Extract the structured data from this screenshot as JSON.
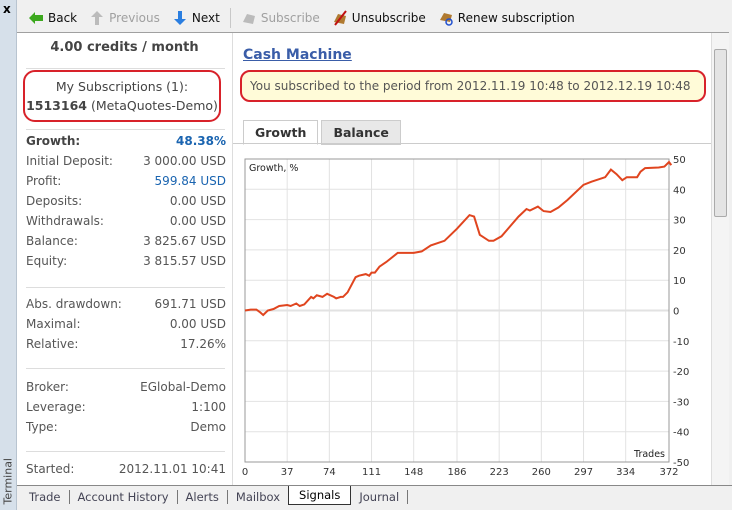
{
  "window": {
    "close_label": "x",
    "panel_label": "Terminal"
  },
  "toolbar": {
    "back": "Back",
    "previous": "Previous",
    "next": "Next",
    "subscribe": "Subscribe",
    "unsubscribe": "Unsubscribe",
    "renew": "Renew subscription"
  },
  "left": {
    "price": "4.00 credits / month",
    "subs_title": "My Subscriptions (1):",
    "subs_account": "1513164",
    "subs_server": "(MetaQuotes-Demo)",
    "stats1": [
      {
        "label": "Growth:",
        "value": "48.38%"
      },
      {
        "label": "Initial Deposit:",
        "value": "3 000.00 USD"
      },
      {
        "label": "Profit:",
        "value": "599.84 USD"
      },
      {
        "label": "Deposits:",
        "value": "0.00 USD"
      },
      {
        "label": "Withdrawals:",
        "value": "0.00 USD"
      },
      {
        "label": "Balance:",
        "value": "3 825.67 USD"
      },
      {
        "label": "Equity:",
        "value": "3 815.57 USD"
      }
    ],
    "stats2": [
      {
        "label": "Abs. drawdown:",
        "value": "691.71 USD"
      },
      {
        "label": "Maximal:",
        "value": "0.00 USD"
      },
      {
        "label": "Relative:",
        "value": "17.26%"
      }
    ],
    "stats3": [
      {
        "label": "Broker:",
        "value": "EGlobal-Demo"
      },
      {
        "label": "Leverage:",
        "value": "1:100"
      },
      {
        "label": "Type:",
        "value": "Demo"
      }
    ],
    "started": {
      "label": "Started:",
      "value": "2012.11.01 10:41"
    }
  },
  "right": {
    "title": "Cash Machine",
    "period": "You subscribed to the period from 2012.11.19 10:48 to 2012.12.19 10:48",
    "tabs": [
      "Growth",
      "Balance"
    ]
  },
  "chart_data": {
    "type": "line",
    "title": "Growth, %",
    "xlabel": "Trades",
    "ylabel": "",
    "xlim": [
      0,
      374
    ],
    "ylim": [
      -50,
      50
    ],
    "xticks": [
      0,
      37,
      74,
      111,
      148,
      186,
      223,
      260,
      297,
      334,
      372
    ],
    "yticks": [
      50,
      40,
      30,
      20,
      10,
      0,
      -10,
      -20,
      -30,
      -40,
      -50
    ],
    "grid": true,
    "color": "#e0451f",
    "x": [
      0,
      5,
      10,
      13,
      16,
      20,
      25,
      30,
      37,
      40,
      45,
      48,
      52,
      58,
      60,
      63,
      68,
      72,
      78,
      80,
      84,
      86,
      90,
      97,
      100,
      106,
      109,
      111,
      114,
      118,
      124,
      134,
      148,
      155,
      163,
      175,
      186,
      197,
      201,
      206,
      208,
      214,
      218,
      225,
      240,
      247,
      250,
      257,
      262,
      268,
      275,
      283,
      297,
      304,
      316,
      321,
      326,
      331,
      335,
      344,
      347,
      351,
      363,
      368,
      372,
      374
    ],
    "y": [
      0,
      0.3,
      0.3,
      -0.5,
      -1.5,
      0,
      0.5,
      1.5,
      1.8,
      1.5,
      2.3,
      1.5,
      2,
      4.5,
      4,
      5,
      4.5,
      5.5,
      4.5,
      4,
      4.5,
      4.5,
      6,
      11,
      11.5,
      12,
      11.5,
      12.5,
      12.5,
      14.5,
      16,
      19,
      19,
      19.5,
      21.5,
      23,
      27,
      31.5,
      31,
      25,
      24.5,
      23,
      23,
      24.5,
      31,
      33.5,
      33,
      34.3,
      32.8,
      32.5,
      34,
      36.5,
      41.5,
      42.5,
      44,
      46.5,
      45,
      43,
      44,
      44,
      45.8,
      47,
      47.2,
      47.5,
      49,
      48
    ]
  },
  "bottom_tabs": [
    "Trade",
    "Account History",
    "Alerts",
    "Mailbox",
    "Signals",
    "Journal"
  ],
  "active_bottom_tab": "Signals"
}
